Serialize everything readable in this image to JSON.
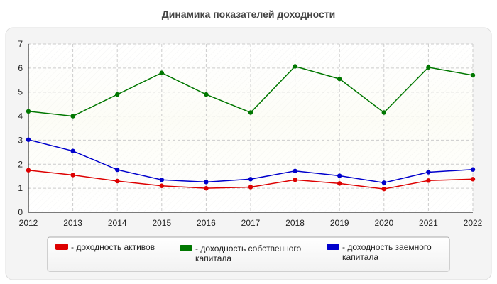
{
  "chart_data": {
    "type": "line",
    "title": "Динамика показателей доходности",
    "x": [
      "2012",
      "2013",
      "2014",
      "2015",
      "2016",
      "2017",
      "2018",
      "2019",
      "2020",
      "2021",
      "2022"
    ],
    "ylim": [
      0,
      7
    ],
    "yticks": [
      "0",
      "1",
      "2",
      "3",
      "4",
      "5",
      "6",
      "7"
    ],
    "grid": true,
    "legend_placement": "bottom",
    "series": [
      {
        "name_lines": [
          "- доходность активов"
        ],
        "color": "#dd0000",
        "values": [
          1.75,
          1.55,
          1.3,
          1.1,
          1.0,
          1.05,
          1.35,
          1.2,
          0.97,
          1.32,
          1.38
        ]
      },
      {
        "name_lines": [
          "- доходность собственного",
          "капитала"
        ],
        "color": "#007700",
        "values": [
          4.2,
          4.0,
          4.9,
          5.8,
          4.9,
          4.15,
          6.07,
          5.55,
          4.15,
          6.03,
          5.7
        ]
      },
      {
        "name_lines": [
          "- доходность заемного",
          "капитала"
        ],
        "color": "#0000cc",
        "values": [
          3.02,
          2.55,
          1.77,
          1.35,
          1.26,
          1.38,
          1.72,
          1.52,
          1.23,
          1.67,
          1.78
        ]
      }
    ]
  }
}
